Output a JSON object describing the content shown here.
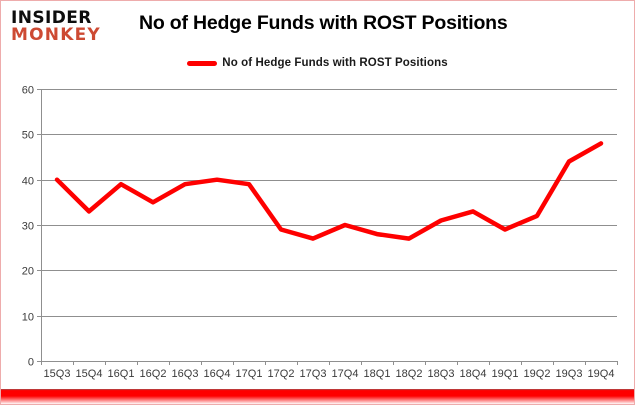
{
  "logo": {
    "line1": "INSIDER",
    "line2": "MONKEY"
  },
  "header": {
    "title": "No of Hedge Funds with ROST Positions"
  },
  "legend": {
    "label": "No of Hedge Funds with ROST Positions"
  },
  "colors": {
    "series": "#fe0000",
    "gridline": "#8f8f8f",
    "axis_text": "#3b3b3b",
    "logo_red": "#cd4a33"
  },
  "chart_data": {
    "type": "line",
    "title": "No of Hedge Funds with ROST Positions",
    "categories": [
      "15Q3",
      "15Q4",
      "16Q1",
      "16Q2",
      "16Q3",
      "16Q4",
      "17Q1",
      "17Q2",
      "17Q3",
      "17Q4",
      "18Q1",
      "18Q2",
      "18Q3",
      "18Q4",
      "19Q1",
      "19Q2",
      "19Q3",
      "19Q4"
    ],
    "series": [
      {
        "name": "No of Hedge Funds with ROST Positions",
        "color": "#fe0000",
        "values": [
          40,
          33,
          39,
          35,
          39,
          40,
          39,
          29,
          27,
          30,
          28,
          27,
          31,
          33,
          29,
          32,
          44,
          48
        ]
      }
    ],
    "ylim": [
      0,
      60
    ],
    "ytick_interval": 10,
    "grid": true,
    "legend_position": "top"
  }
}
